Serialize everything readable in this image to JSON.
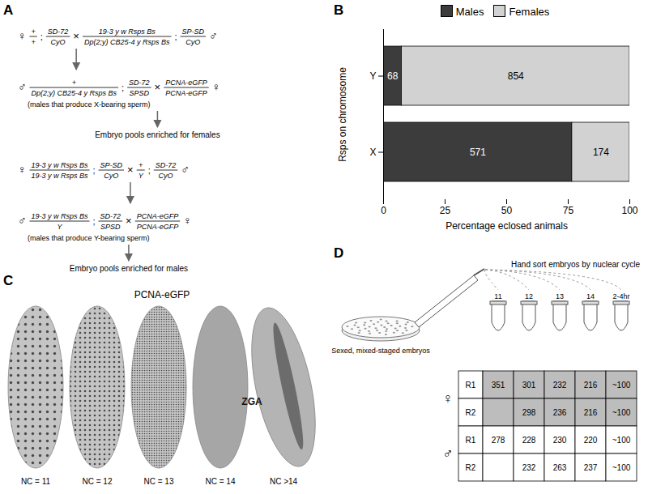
{
  "chart_data": {
    "type": "bar",
    "orientation": "horizontal",
    "stacked": true,
    "label": "B",
    "categories": [
      "Y",
      "X"
    ],
    "series": [
      {
        "name": "Males",
        "color": "#3c3c3c",
        "values": [
          7.4,
          76.6
        ],
        "counts": [
          68,
          571
        ]
      },
      {
        "name": "Females",
        "color": "#d2d2d2",
        "values": [
          92.6,
          23.4
        ],
        "counts": [
          854,
          174
        ]
      }
    ],
    "xlabel": "Percentage eclosed animals",
    "ylabel": "Rsps on chromosome",
    "xlim": [
      0,
      100
    ],
    "xticks": [
      0,
      25,
      50,
      75,
      100
    ],
    "legend": "top"
  },
  "panel_A": {
    "label": "A",
    "crosses": [
      {
        "parents": [
          "♀",
          [
            "+",
            "+"
          ],
          ";",
          [
            "SD-72",
            "CyO"
          ],
          "×",
          [
            "19-3 y w Rsps Bs",
            "Dp(2;y) CB25-4 y Rsps Bs"
          ],
          ";",
          [
            "SP-SD",
            "CyO"
          ],
          "♂"
        ],
        "offspring": [
          "♂",
          [
            "+",
            "Dp(2;y) CB25-4 y Rsps Bs"
          ],
          ";",
          [
            "SD-72",
            "SPSD"
          ],
          "×",
          [
            "PCNA-eGFP",
            "PCNA-eGFP"
          ],
          "♀"
        ],
        "note": "(males that produce X-bearing sperm)",
        "result": "Embryo pools enriched for females"
      },
      {
        "parents": [
          "♀",
          [
            "19-3 y w Rsps Bs",
            "19-3 y w Rsps Bs"
          ],
          ";",
          [
            "SP-SD",
            "CyO"
          ],
          "×",
          [
            "+",
            "Y"
          ],
          ";",
          [
            "SD-72",
            "CyO"
          ],
          "♂"
        ],
        "offspring": [
          "♂",
          [
            "19-3 y w Rsps Bs",
            "Y"
          ],
          ";",
          [
            "SD-72",
            "SPSD"
          ],
          "×",
          [
            "PCNA-eGFP",
            "PCNA-eGFP"
          ],
          "♀"
        ],
        "note": "(males that produce Y-bearing sperm)",
        "result": "Embryo pools enriched for males"
      }
    ]
  },
  "panel_C": {
    "label": "C",
    "title": "PCNA-eGFP",
    "annotation": "ZGA",
    "embryos": [
      "NC = 11",
      "NC = 12",
      "NC = 13",
      "NC = 14",
      "NC >14"
    ]
  },
  "panel_D": {
    "label": "D",
    "dish_label": "Sexed, mixed-staged embryos",
    "sort_label": "Hand sort embryos by nuclear cycle",
    "tubes": [
      "11",
      "12",
      "13",
      "14",
      "2-4hr"
    ],
    "table": [
      {
        "sex": "♀",
        "rows": [
          {
            "rep": "R1",
            "cells": [
              351,
              301,
              232,
              216,
              "~100"
            ]
          },
          {
            "rep": "R2",
            "cells": [
              null,
              298,
              236,
              216,
              "~100"
            ]
          }
        ]
      },
      {
        "sex": "♂",
        "rows": [
          {
            "rep": "R1",
            "cells": [
              278,
              228,
              230,
              220,
              "~100"
            ]
          },
          {
            "rep": "R2",
            "cells": [
              null,
              232,
              263,
              237,
              "~100"
            ]
          }
        ]
      }
    ]
  }
}
